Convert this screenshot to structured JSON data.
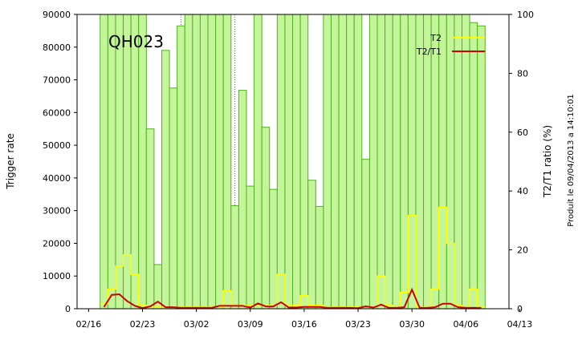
{
  "chart_data": {
    "type": "bar",
    "station_label": "QH023",
    "ylabel_left": "Trigger rate",
    "ylabel_right": "T2/T1 ratio (%)",
    "footer": "Produit le 09/04/2013 a 14:10:01",
    "x_tick_labels": [
      "02/16",
      "02/23",
      "03/02",
      "03/09",
      "03/16",
      "03/23",
      "03/30",
      "04/06",
      "04/13"
    ],
    "y_left_ticks": [
      "0",
      "10000",
      "20000",
      "30000",
      "40000",
      "50000",
      "60000",
      "70000",
      "80000",
      "90000"
    ],
    "y_right_ticks": [
      "0",
      "20",
      "40",
      "60",
      "80",
      "100"
    ],
    "ylim_left": [
      0,
      90000
    ],
    "ylim_right": [
      0,
      100
    ],
    "grid_x_day": [
      12,
      19,
      26,
      33,
      40,
      47
    ],
    "legend": {
      "position": "top-right",
      "entries": [
        {
          "label": "T2",
          "color": "#ffff00"
        },
        {
          "label": "T2/T1",
          "color": "#cc0000"
        }
      ]
    },
    "colors": {
      "bar_fill": "#c5f59a",
      "bar_edge": "#4db31a",
      "t2_line": "#ffff00",
      "ratio_line": "#cc0000"
    },
    "series": [
      {
        "name": "T1",
        "kind": "bar",
        "days": [
          2,
          3,
          4,
          5,
          6,
          7,
          8,
          9,
          10,
          11,
          12,
          13,
          14,
          15,
          16,
          17,
          18,
          19,
          20,
          21,
          22,
          23,
          24,
          25,
          26,
          27,
          28,
          29,
          30,
          31,
          32,
          33,
          34,
          35,
          36,
          37,
          38,
          39,
          40,
          41,
          42,
          43,
          44,
          45,
          46,
          47,
          48,
          49,
          50,
          51
        ],
        "values": [
          90000,
          90000,
          90000,
          90000,
          90000,
          90000,
          55000,
          13500,
          79000,
          67500,
          86500,
          90000,
          90000,
          90000,
          90000,
          90000,
          90000,
          31500,
          66800,
          37500,
          90000,
          55500,
          36500,
          90000,
          90000,
          90000,
          90000,
          39300,
          31300,
          90000,
          90000,
          90000,
          90000,
          90000,
          45700,
          90000,
          90000,
          90000,
          90000,
          90000,
          90000,
          90000,
          90000,
          90000,
          90000,
          90000,
          90000,
          90000,
          87500,
          86500
        ]
      },
      {
        "name": "T2",
        "kind": "step",
        "days": [
          2,
          3,
          4,
          5,
          6,
          7,
          8,
          9,
          10,
          11,
          12,
          13,
          14,
          15,
          16,
          17,
          18,
          19,
          20,
          21,
          22,
          23,
          24,
          25,
          26,
          27,
          28,
          29,
          30,
          31,
          32,
          33,
          34,
          35,
          36,
          37,
          38,
          39,
          40,
          41,
          42,
          43,
          44,
          45,
          46,
          47,
          48,
          49,
          50,
          51
        ],
        "values": [
          1500,
          6000,
          13000,
          16500,
          10500,
          1000,
          500,
          500,
          500,
          500,
          500,
          500,
          500,
          500,
          500,
          500,
          5500,
          1000,
          1000,
          1000,
          1000,
          1000,
          1000,
          10500,
          1000,
          1000,
          4000,
          1000,
          1000,
          500,
          500,
          500,
          500,
          500,
          500,
          500,
          10000,
          1000,
          500,
          5000,
          28500,
          500,
          500,
          6000,
          31000,
          20000,
          1000,
          500,
          6000,
          500
        ]
      },
      {
        "name": "T2/T1",
        "kind": "line",
        "days": [
          2,
          3,
          4,
          5,
          6,
          7,
          8,
          9,
          10,
          11,
          12,
          13,
          14,
          15,
          16,
          17,
          18,
          19,
          20,
          21,
          22,
          23,
          24,
          25,
          26,
          27,
          28,
          29,
          30,
          31,
          32,
          33,
          34,
          35,
          36,
          37,
          38,
          39,
          40,
          41,
          42,
          43,
          44,
          45,
          46,
          47,
          48,
          49,
          50,
          51
        ],
        "values": [
          0.6,
          4.7,
          4.9,
          2.6,
          1.0,
          0.2,
          0.8,
          2.4,
          0.5,
          0.5,
          0.3,
          0.3,
          0.3,
          0.3,
          0.3,
          1.0,
          1.0,
          1.0,
          1.0,
          0.4,
          1.8,
          0.8,
          0.8,
          2.2,
          0.4,
          0.4,
          0.6,
          0.6,
          0.6,
          0.3,
          0.3,
          0.3,
          0.3,
          0.2,
          0.8,
          0.4,
          1.4,
          0.3,
          0.3,
          0.5,
          6.5,
          0.3,
          0.3,
          0.5,
          1.7,
          1.7,
          0.5,
          0.3,
          0.3,
          0.3
        ]
      }
    ]
  }
}
